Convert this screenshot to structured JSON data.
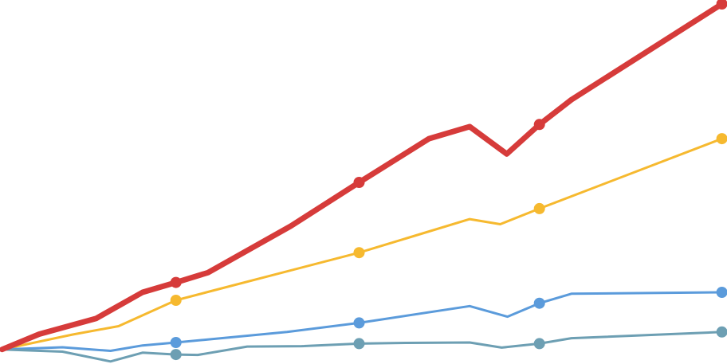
{
  "chart_data": {
    "type": "line",
    "title": "",
    "xlabel": "",
    "ylabel": "",
    "grid": false,
    "legend": "none",
    "xlim": [
      0,
      100
    ],
    "ylim": [
      0,
      100
    ],
    "series": [
      {
        "key": "red",
        "color": "#d63b3a",
        "emphasis": "thick",
        "points": [
          [
            0.3,
            4.0
          ],
          [
            5.4,
            8.2
          ],
          [
            13.2,
            12.5
          ],
          [
            19.6,
            19.7
          ],
          [
            24.2,
            22.4
          ],
          [
            28.6,
            25.1
          ],
          [
            40.0,
            37.9
          ],
          [
            49.4,
            49.9
          ],
          [
            59.0,
            61.9
          ],
          [
            64.6,
            65.2
          ],
          [
            69.7,
            57.7
          ],
          [
            74.2,
            65.8
          ],
          [
            78.6,
            72.6
          ],
          [
            99.3,
            98.9
          ]
        ],
        "markers": [
          [
            24.2,
            22.4
          ],
          [
            49.4,
            49.9
          ],
          [
            74.2,
            65.8
          ],
          [
            99.3,
            98.9
          ]
        ]
      },
      {
        "key": "yellow",
        "color": "#f6b92f",
        "emphasis": "normal",
        "points": [
          [
            0.3,
            4.0
          ],
          [
            10.0,
            8.1
          ],
          [
            16.3,
            10.4
          ],
          [
            24.2,
            17.5
          ],
          [
            28.6,
            19.8
          ],
          [
            49.4,
            30.6
          ],
          [
            64.6,
            39.8
          ],
          [
            68.8,
            38.4
          ],
          [
            74.2,
            42.7
          ],
          [
            99.3,
            61.9
          ]
        ],
        "markers": [
          [
            24.2,
            17.5
          ],
          [
            49.4,
            30.6
          ],
          [
            74.2,
            42.7
          ],
          [
            99.3,
            61.9
          ]
        ]
      },
      {
        "key": "blue",
        "color": "#5b9bdb",
        "emphasis": "normal",
        "points": [
          [
            0.3,
            4.0
          ],
          [
            8.6,
            4.6
          ],
          [
            15.2,
            3.6
          ],
          [
            19.6,
            5.1
          ],
          [
            24.2,
            5.9
          ],
          [
            39.5,
            8.8
          ],
          [
            49.4,
            11.3
          ],
          [
            64.6,
            15.9
          ],
          [
            69.8,
            13.0
          ],
          [
            74.2,
            16.7
          ],
          [
            78.6,
            19.3
          ],
          [
            99.3,
            19.7
          ]
        ],
        "markers": [
          [
            24.2,
            5.9
          ],
          [
            49.4,
            11.3
          ],
          [
            74.2,
            16.7
          ],
          [
            99.3,
            19.7
          ]
        ]
      },
      {
        "key": "teal",
        "color": "#6d9fb3",
        "emphasis": "normal",
        "points": [
          [
            0.3,
            4.0
          ],
          [
            8.6,
            3.4
          ],
          [
            15.2,
            0.7
          ],
          [
            19.6,
            3.1
          ],
          [
            24.2,
            2.6
          ],
          [
            27.2,
            2.5
          ],
          [
            34.0,
            4.8
          ],
          [
            41.5,
            4.9
          ],
          [
            49.4,
            5.6
          ],
          [
            56.0,
            5.8
          ],
          [
            64.6,
            5.9
          ],
          [
            69.0,
            4.5
          ],
          [
            74.2,
            5.6
          ],
          [
            78.6,
            7.1
          ],
          [
            99.3,
            8.8
          ]
        ],
        "markers": [
          [
            24.2,
            2.6
          ],
          [
            49.4,
            5.6
          ],
          [
            74.2,
            5.6
          ],
          [
            99.3,
            8.8
          ]
        ]
      }
    ]
  }
}
